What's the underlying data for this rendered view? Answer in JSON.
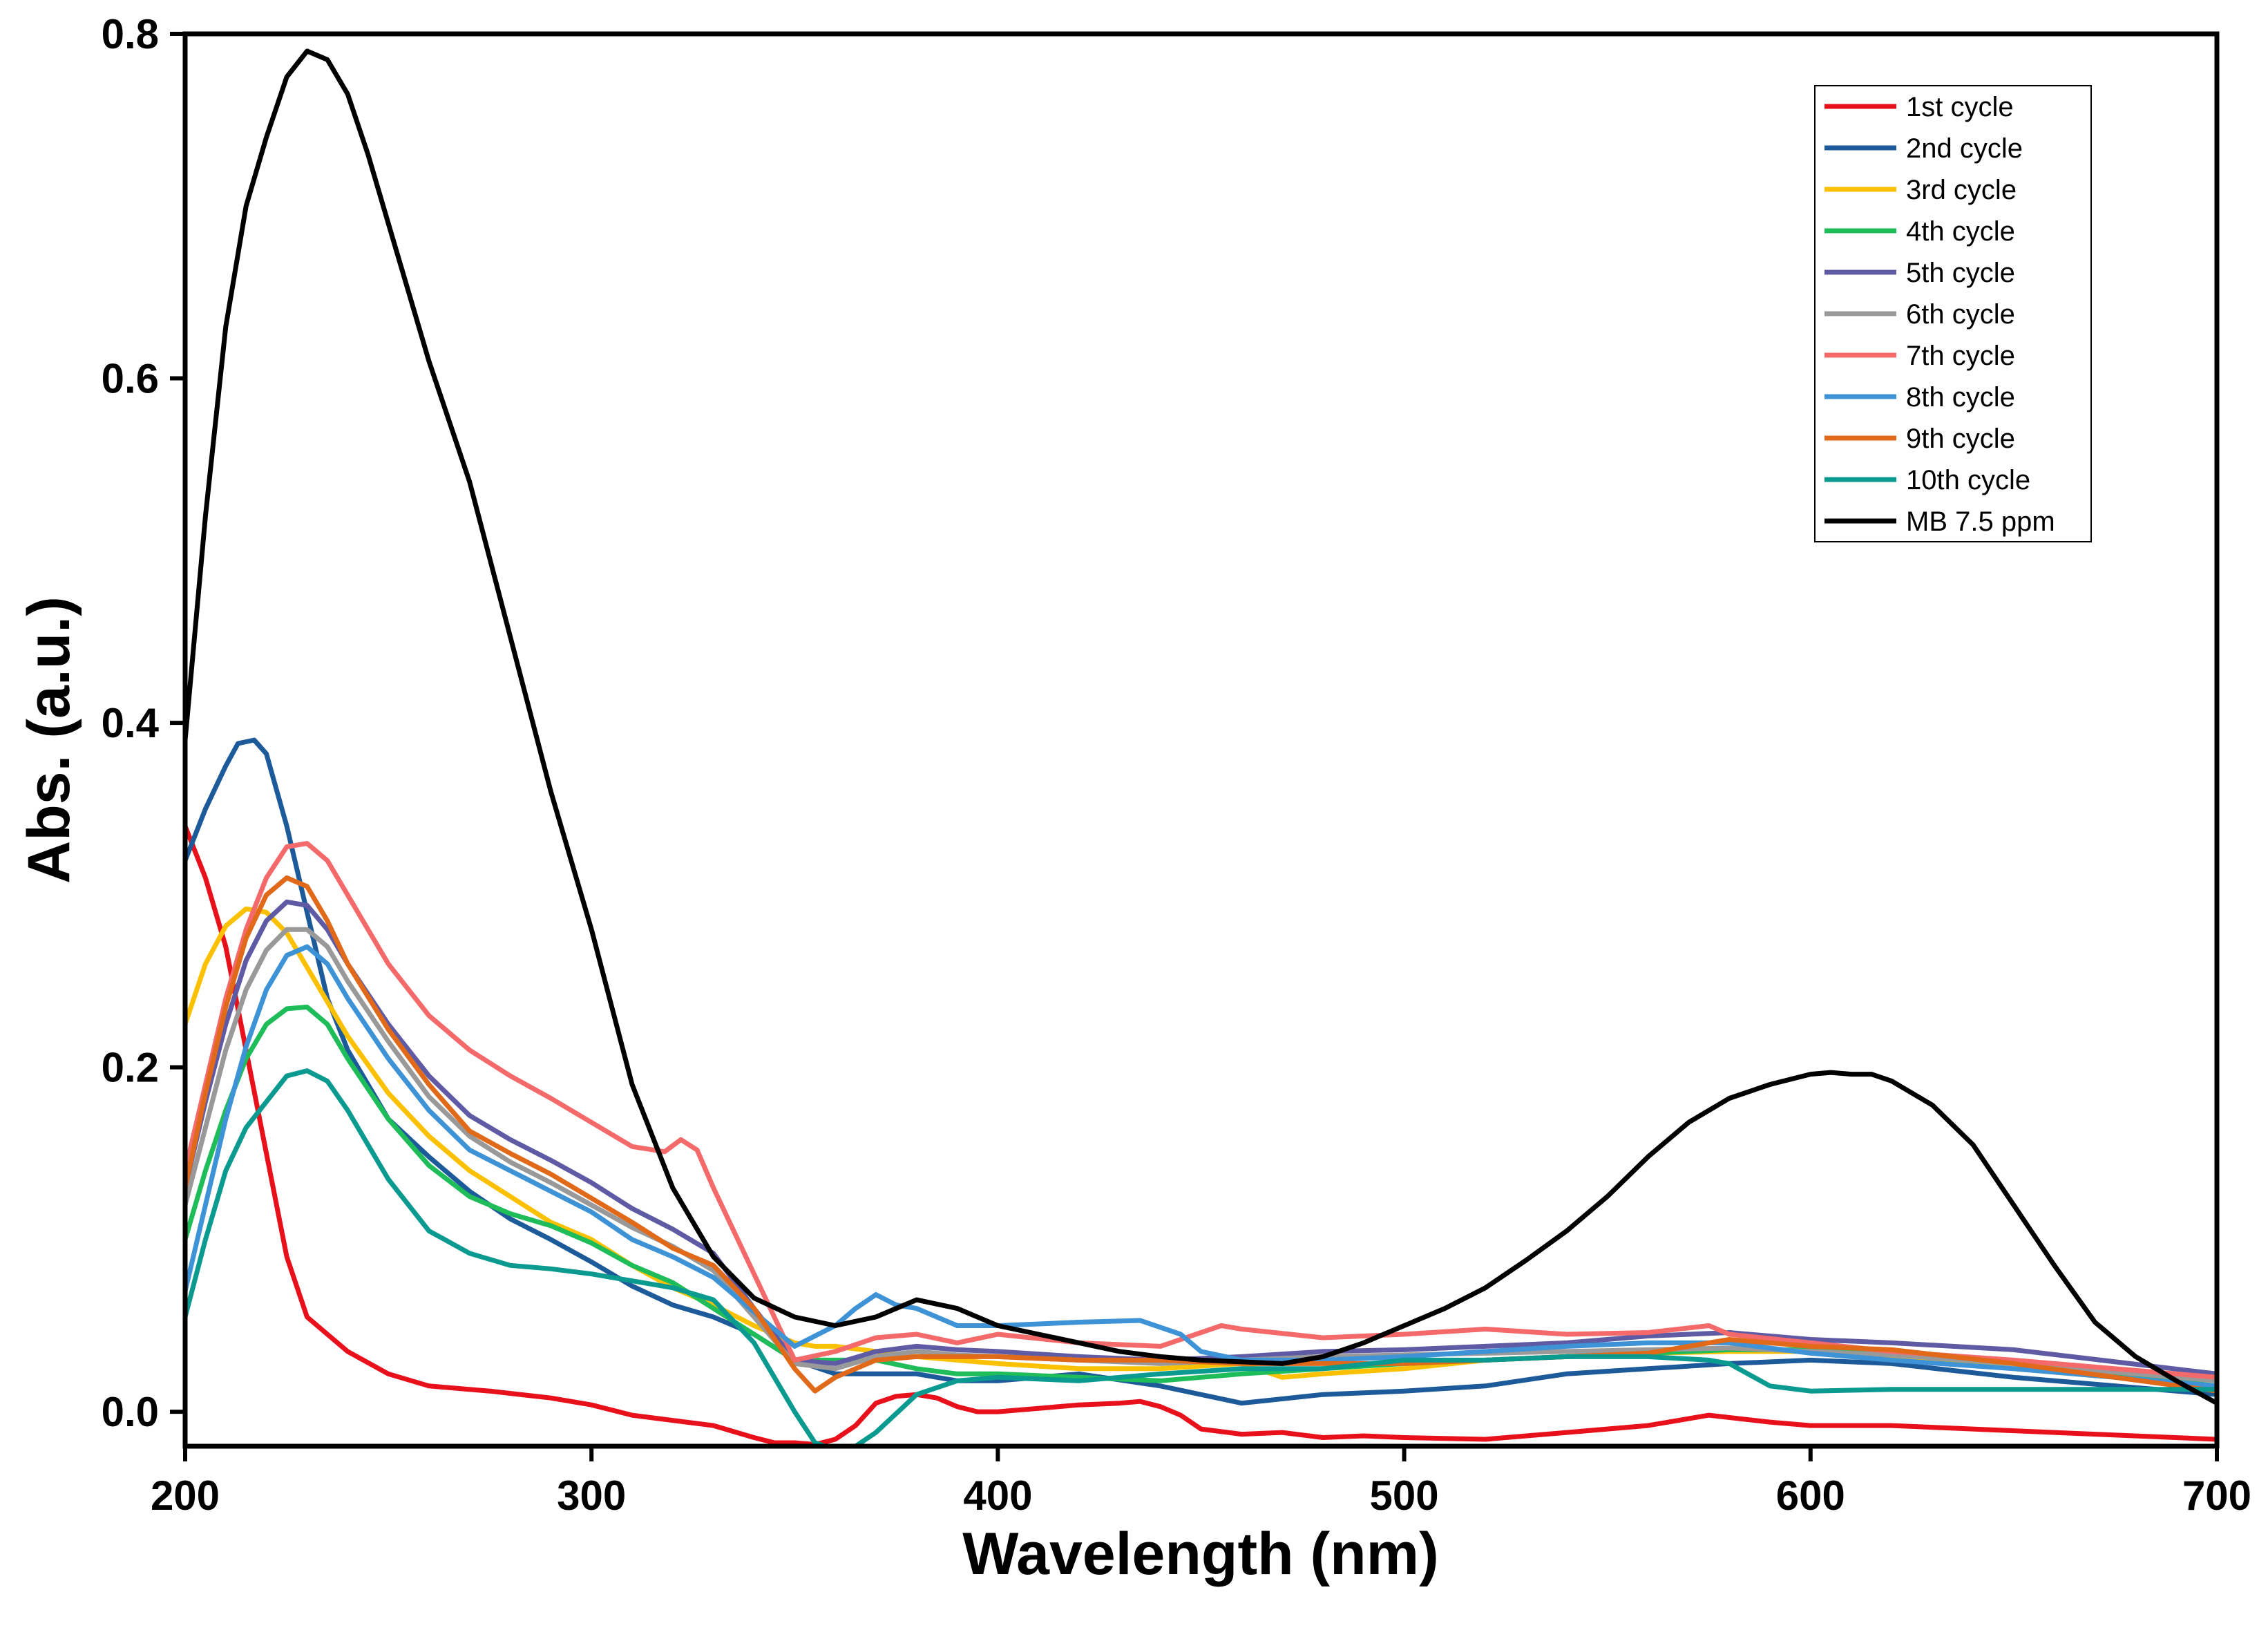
{
  "chart_data": {
    "type": "line",
    "title": "",
    "xlabel": "Wavelength (nm)",
    "ylabel": "Abs. (a.u.)",
    "xlim": [
      200,
      700
    ],
    "ylim": [
      -0.02,
      0.8
    ],
    "xticks": [
      200,
      300,
      400,
      500,
      600,
      700
    ],
    "yticks": [
      0.0,
      0.2,
      0.4,
      0.6,
      0.8
    ],
    "xtick_labels": [
      "200",
      "300",
      "400",
      "500",
      "600",
      "700"
    ],
    "ytick_labels": [
      "0.0",
      "0.2",
      "0.4",
      "0.6",
      "0.8"
    ],
    "grid": false,
    "legend_position": "top-right",
    "series": [
      {
        "name": "1st cycle",
        "color": "#e8101a",
        "x": [
          200,
          205,
          210,
          215,
          220,
          225,
          230,
          235,
          240,
          250,
          260,
          275,
          290,
          300,
          310,
          320,
          330,
          340,
          345,
          350,
          355,
          360,
          365,
          370,
          375,
          380,
          385,
          390,
          395,
          400,
          410,
          420,
          430,
          435,
          440,
          445,
          450,
          460,
          470,
          480,
          490,
          500,
          520,
          540,
          560,
          575,
          590,
          600,
          620,
          650,
          670,
          700
        ],
        "y": [
          0.34,
          0.31,
          0.27,
          0.21,
          0.15,
          0.09,
          0.055,
          0.045,
          0.035,
          0.022,
          0.015,
          0.012,
          0.008,
          0.004,
          -0.002,
          -0.005,
          -0.008,
          -0.015,
          -0.018,
          -0.018,
          -0.019,
          -0.016,
          -0.008,
          0.005,
          0.009,
          0.01,
          0.008,
          0.003,
          0.0,
          0.0,
          0.002,
          0.004,
          0.005,
          0.006,
          0.003,
          -0.002,
          -0.01,
          -0.013,
          -0.012,
          -0.015,
          -0.014,
          -0.015,
          -0.016,
          -0.012,
          -0.008,
          -0.002,
          -0.006,
          -0.008,
          -0.008,
          -0.011,
          -0.013,
          -0.016
        ]
      },
      {
        "name": "2nd cycle",
        "color": "#1d5a9a",
        "x": [
          200,
          205,
          210,
          213,
          217,
          220,
          225,
          230,
          235,
          240,
          250,
          260,
          270,
          280,
          290,
          300,
          310,
          320,
          330,
          340,
          350,
          360,
          370,
          380,
          390,
          400,
          420,
          440,
          460,
          480,
          500,
          520,
          540,
          560,
          580,
          600,
          620,
          650,
          700
        ],
        "y": [
          0.32,
          0.35,
          0.375,
          0.388,
          0.39,
          0.382,
          0.34,
          0.29,
          0.24,
          0.21,
          0.17,
          0.148,
          0.128,
          0.112,
          0.1,
          0.087,
          0.073,
          0.062,
          0.055,
          0.045,
          0.03,
          0.022,
          0.022,
          0.022,
          0.018,
          0.018,
          0.022,
          0.015,
          0.005,
          0.01,
          0.012,
          0.015,
          0.022,
          0.025,
          0.028,
          0.03,
          0.028,
          0.02,
          0.01
        ]
      },
      {
        "name": "3rd cycle",
        "color": "#fbc100",
        "x": [
          200,
          205,
          210,
          215,
          220,
          225,
          230,
          240,
          250,
          260,
          270,
          280,
          290,
          300,
          310,
          320,
          330,
          340,
          345,
          350,
          355,
          360,
          370,
          380,
          390,
          400,
          420,
          440,
          460,
          470,
          480,
          500,
          520,
          540,
          560,
          580,
          600,
          620,
          650,
          700
        ],
        "y": [
          0.225,
          0.26,
          0.282,
          0.292,
          0.29,
          0.278,
          0.258,
          0.218,
          0.185,
          0.16,
          0.14,
          0.125,
          0.11,
          0.1,
          0.085,
          0.072,
          0.062,
          0.05,
          0.045,
          0.04,
          0.038,
          0.038,
          0.035,
          0.032,
          0.03,
          0.028,
          0.025,
          0.025,
          0.028,
          0.02,
          0.022,
          0.025,
          0.03,
          0.032,
          0.034,
          0.035,
          0.035,
          0.032,
          0.025,
          0.015
        ]
      },
      {
        "name": "4th cycle",
        "color": "#1fbc5a",
        "x": [
          200,
          205,
          210,
          215,
          220,
          225,
          230,
          235,
          240,
          250,
          260,
          270,
          280,
          290,
          300,
          310,
          320,
          330,
          340,
          350,
          360,
          370,
          380,
          390,
          400,
          420,
          440,
          460,
          480,
          500,
          520,
          540,
          560,
          580,
          600,
          620,
          650,
          700
        ],
        "y": [
          0.1,
          0.14,
          0.175,
          0.205,
          0.225,
          0.234,
          0.235,
          0.225,
          0.205,
          0.17,
          0.143,
          0.125,
          0.115,
          0.108,
          0.098,
          0.085,
          0.075,
          0.06,
          0.045,
          0.03,
          0.03,
          0.03,
          0.025,
          0.022,
          0.022,
          0.02,
          0.018,
          0.022,
          0.025,
          0.028,
          0.03,
          0.032,
          0.034,
          0.036,
          0.036,
          0.034,
          0.028,
          0.015
        ]
      },
      {
        "name": "5th cycle",
        "color": "#5e5aa3",
        "x": [
          200,
          205,
          210,
          215,
          220,
          225,
          230,
          235,
          240,
          250,
          260,
          270,
          280,
          290,
          300,
          310,
          320,
          330,
          340,
          350,
          360,
          370,
          380,
          390,
          400,
          420,
          440,
          460,
          480,
          500,
          520,
          540,
          560,
          580,
          600,
          620,
          650,
          700
        ],
        "y": [
          0.13,
          0.18,
          0.225,
          0.262,
          0.285,
          0.296,
          0.294,
          0.28,
          0.26,
          0.225,
          0.195,
          0.172,
          0.158,
          0.146,
          0.133,
          0.118,
          0.106,
          0.092,
          0.06,
          0.03,
          0.028,
          0.035,
          0.038,
          0.036,
          0.035,
          0.032,
          0.03,
          0.032,
          0.035,
          0.036,
          0.038,
          0.04,
          0.044,
          0.046,
          0.042,
          0.04,
          0.036,
          0.022
        ]
      },
      {
        "name": "6th cycle",
        "color": "#999999",
        "x": [
          200,
          205,
          210,
          215,
          220,
          225,
          230,
          235,
          240,
          250,
          260,
          270,
          280,
          290,
          300,
          310,
          320,
          330,
          340,
          350,
          360,
          370,
          380,
          390,
          400,
          420,
          440,
          460,
          480,
          500,
          520,
          540,
          560,
          580,
          600,
          620,
          650,
          700
        ],
        "y": [
          0.12,
          0.165,
          0.21,
          0.245,
          0.268,
          0.28,
          0.28,
          0.27,
          0.25,
          0.215,
          0.183,
          0.16,
          0.145,
          0.133,
          0.12,
          0.107,
          0.096,
          0.082,
          0.055,
          0.028,
          0.025,
          0.032,
          0.035,
          0.033,
          0.032,
          0.03,
          0.028,
          0.03,
          0.032,
          0.033,
          0.034,
          0.035,
          0.036,
          0.037,
          0.035,
          0.033,
          0.028,
          0.018
        ]
      },
      {
        "name": "7th cycle",
        "color": "#f46a6a",
        "x": [
          200,
          205,
          210,
          215,
          220,
          225,
          230,
          235,
          240,
          250,
          260,
          270,
          280,
          290,
          300,
          310,
          318,
          322,
          326,
          330,
          340,
          350,
          360,
          370,
          380,
          390,
          400,
          420,
          440,
          455,
          460,
          480,
          500,
          520,
          540,
          560,
          575,
          580,
          600,
          620,
          650,
          700
        ],
        "y": [
          0.14,
          0.19,
          0.24,
          0.28,
          0.31,
          0.328,
          0.33,
          0.32,
          0.3,
          0.26,
          0.23,
          0.21,
          0.195,
          0.182,
          0.168,
          0.154,
          0.151,
          0.158,
          0.152,
          0.13,
          0.08,
          0.03,
          0.035,
          0.043,
          0.045,
          0.04,
          0.045,
          0.04,
          0.038,
          0.05,
          0.048,
          0.043,
          0.045,
          0.048,
          0.045,
          0.046,
          0.05,
          0.045,
          0.04,
          0.035,
          0.03,
          0.02
        ]
      },
      {
        "name": "8th cycle",
        "color": "#3e93d6",
        "x": [
          200,
          205,
          210,
          215,
          220,
          225,
          230,
          235,
          240,
          250,
          260,
          270,
          280,
          290,
          300,
          310,
          320,
          330,
          340,
          350,
          360,
          365,
          370,
          375,
          380,
          390,
          400,
          420,
          435,
          445,
          450,
          460,
          480,
          500,
          520,
          540,
          560,
          580,
          600,
          620,
          650,
          700
        ],
        "y": [
          0.07,
          0.12,
          0.17,
          0.212,
          0.245,
          0.265,
          0.27,
          0.26,
          0.24,
          0.205,
          0.175,
          0.152,
          0.14,
          0.128,
          0.116,
          0.1,
          0.09,
          0.078,
          0.058,
          0.038,
          0.05,
          0.06,
          0.068,
          0.062,
          0.06,
          0.05,
          0.05,
          0.052,
          0.053,
          0.045,
          0.035,
          0.03,
          0.03,
          0.032,
          0.035,
          0.038,
          0.04,
          0.04,
          0.034,
          0.03,
          0.025,
          0.015
        ]
      },
      {
        "name": "9th cycle",
        "color": "#e06a1a",
        "x": [
          200,
          205,
          210,
          215,
          220,
          225,
          230,
          235,
          240,
          250,
          260,
          270,
          280,
          290,
          300,
          310,
          320,
          330,
          340,
          350,
          355,
          360,
          370,
          380,
          390,
          400,
          420,
          440,
          460,
          480,
          500,
          520,
          540,
          560,
          580,
          600,
          620,
          650,
          700
        ],
        "y": [
          0.13,
          0.185,
          0.235,
          0.275,
          0.3,
          0.31,
          0.305,
          0.285,
          0.26,
          0.222,
          0.19,
          0.163,
          0.15,
          0.138,
          0.124,
          0.11,
          0.095,
          0.085,
          0.06,
          0.025,
          0.012,
          0.02,
          0.03,
          0.032,
          0.032,
          0.032,
          0.03,
          0.03,
          0.028,
          0.028,
          0.028,
          0.03,
          0.032,
          0.034,
          0.042,
          0.038,
          0.036,
          0.028,
          0.012
        ]
      },
      {
        "name": "10th cycle",
        "color": "#0a9a90",
        "x": [
          200,
          205,
          210,
          215,
          220,
          225,
          230,
          235,
          240,
          250,
          260,
          270,
          280,
          290,
          300,
          310,
          320,
          330,
          340,
          345,
          350,
          355,
          360,
          365,
          370,
          380,
          390,
          400,
          420,
          440,
          460,
          480,
          500,
          520,
          540,
          560,
          575,
          580,
          590,
          600,
          620,
          650,
          700
        ],
        "y": [
          0.055,
          0.1,
          0.14,
          0.165,
          0.18,
          0.195,
          0.198,
          0.192,
          0.175,
          0.135,
          0.105,
          0.092,
          0.085,
          0.083,
          0.08,
          0.076,
          0.072,
          0.065,
          0.04,
          0.02,
          0.0,
          -0.018,
          -0.022,
          -0.02,
          -0.012,
          0.01,
          0.018,
          0.02,
          0.018,
          0.022,
          0.025,
          0.025,
          0.03,
          0.03,
          0.032,
          0.032,
          0.03,
          0.028,
          0.015,
          0.012,
          0.013,
          0.013,
          0.013
        ]
      },
      {
        "name": "MB 7.5 ppm",
        "color": "#000000",
        "x": [
          200,
          205,
          210,
          215,
          220,
          225,
          230,
          235,
          240,
          245,
          250,
          260,
          270,
          280,
          290,
          300,
          310,
          320,
          330,
          340,
          350,
          360,
          370,
          380,
          390,
          400,
          410,
          420,
          430,
          440,
          450,
          460,
          470,
          480,
          490,
          500,
          510,
          520,
          530,
          540,
          550,
          560,
          570,
          580,
          590,
          600,
          605,
          610,
          615,
          620,
          630,
          640,
          650,
          660,
          670,
          680,
          690,
          700
        ],
        "y": [
          0.39,
          0.52,
          0.63,
          0.7,
          0.74,
          0.775,
          0.79,
          0.785,
          0.765,
          0.73,
          0.69,
          0.61,
          0.54,
          0.45,
          0.36,
          0.28,
          0.19,
          0.13,
          0.09,
          0.066,
          0.055,
          0.05,
          0.055,
          0.065,
          0.06,
          0.05,
          0.045,
          0.04,
          0.035,
          0.032,
          0.03,
          0.029,
          0.028,
          0.032,
          0.04,
          0.05,
          0.06,
          0.072,
          0.088,
          0.105,
          0.125,
          0.148,
          0.168,
          0.182,
          0.19,
          0.196,
          0.197,
          0.196,
          0.196,
          0.192,
          0.178,
          0.155,
          0.12,
          0.085,
          0.052,
          0.032,
          0.018,
          0.005
        ]
      }
    ]
  }
}
